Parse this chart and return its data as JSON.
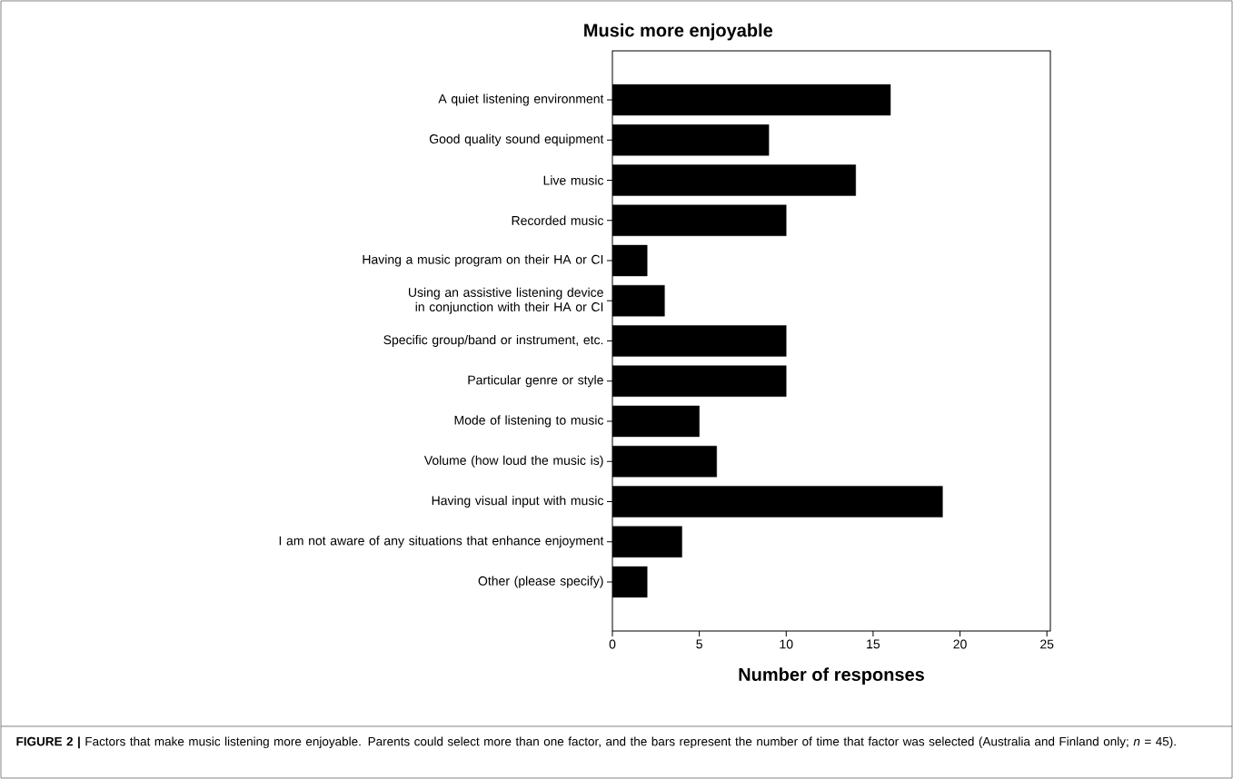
{
  "chart_data": {
    "type": "bar",
    "orientation": "horizontal",
    "title": "Music more enjoyable",
    "xlabel": "Number of responses",
    "categories": [
      "A quiet listening environment",
      "Good quality sound equipment",
      "Live music",
      "Recorded music",
      "Having a music program on their HA or CI",
      "Using an assistive listening device in conjunction with their HA or CI",
      "Specific group/band or instrument, etc.",
      "Particular genre or style",
      "Mode of listening to music",
      "Volume (how loud the music is)",
      "Having visual input with music",
      "I am not aware of any situations that enhance enjoyment",
      "Other (please specify)"
    ],
    "values": [
      16,
      9,
      14,
      10,
      2,
      3,
      10,
      10,
      5,
      6,
      19,
      4,
      2
    ],
    "color": "#000000",
    "xlim": [
      0,
      25.2
    ],
    "xticks": [
      0,
      5,
      10,
      15,
      20,
      25
    ],
    "annotations": [
      "**FIGURE 2 |** Factors that make music listening more enjoyable. Parents could select more than one factor, and the bars represent the number of time that factor was selected (Australia and Finland only; *n* = 45)."
    ]
  }
}
